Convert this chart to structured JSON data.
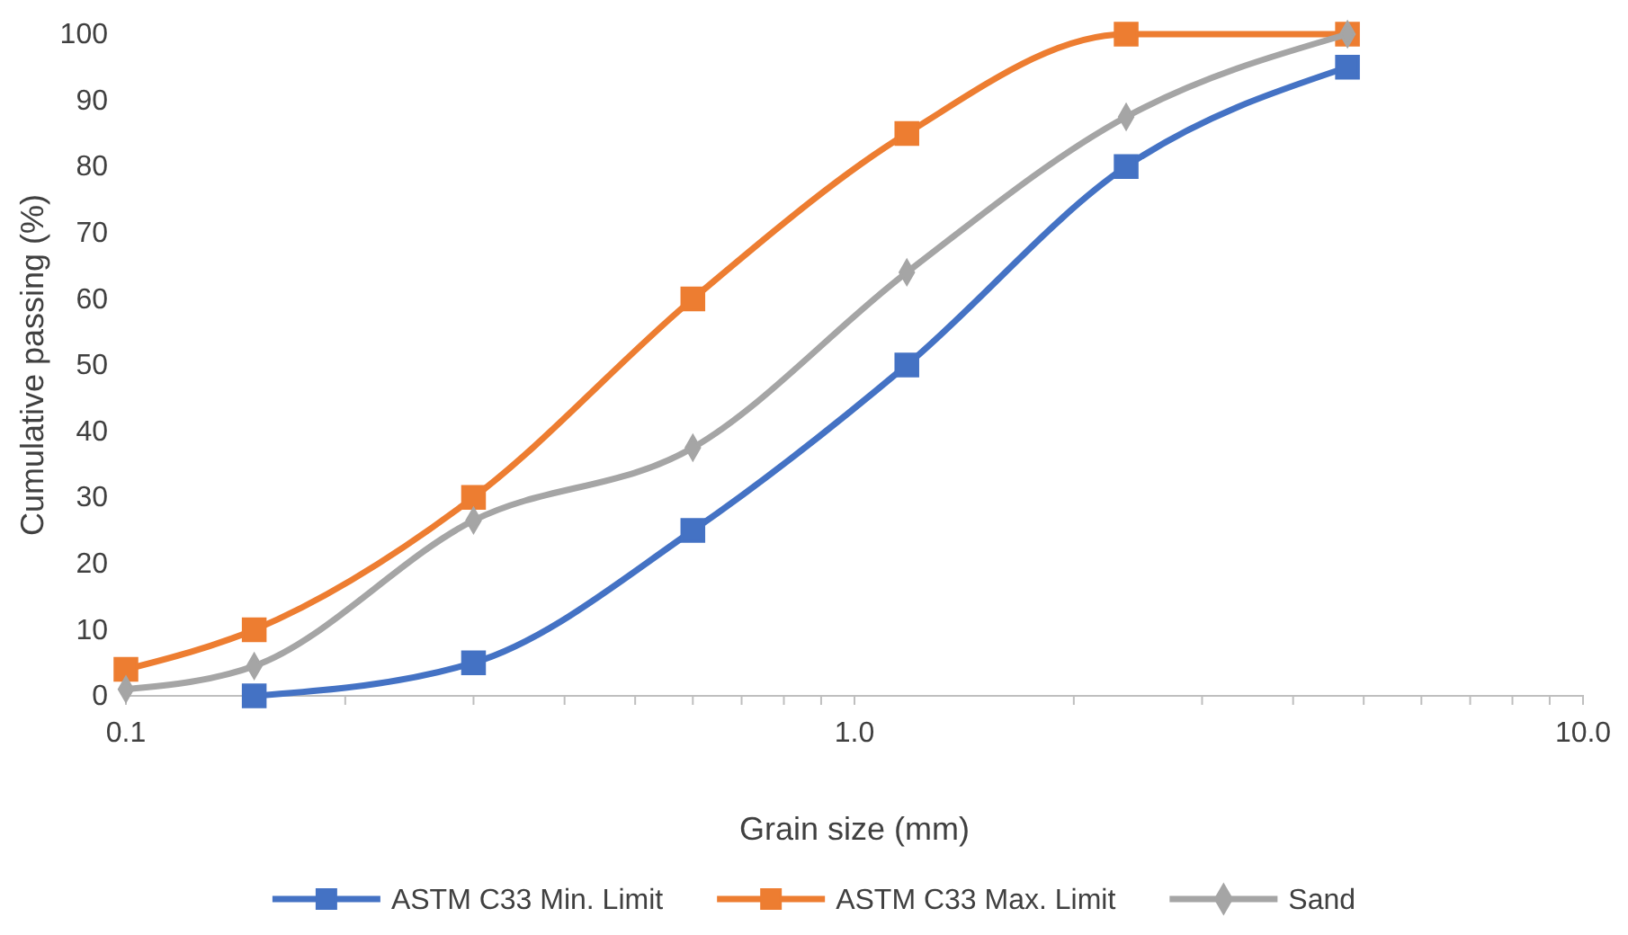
{
  "chart_data": {
    "type": "line",
    "xlabel": "Grain size (mm)",
    "ylabel": "Cumulative passing (%)",
    "log": "x",
    "xlim": [
      0.1,
      10
    ],
    "ylim": [
      0,
      100
    ],
    "xticks": [
      0.1,
      {
        "value": 0.2,
        "label": null
      },
      {
        "value": 0.3,
        "label": null
      },
      {
        "value": 0.4,
        "label": null
      },
      {
        "value": 0.5,
        "label": null
      },
      {
        "value": 0.6,
        "label": null
      },
      {
        "value": 0.7,
        "label": null
      },
      {
        "value": 0.8,
        "label": null
      },
      {
        "value": 0.9,
        "label": null
      },
      {
        "value": 1,
        "label": "1.0"
      },
      {
        "value": 2,
        "label": null
      },
      {
        "value": 3,
        "label": null
      },
      {
        "value": 4,
        "label": null
      },
      {
        "value": 5,
        "label": null
      },
      {
        "value": 6,
        "label": null
      },
      {
        "value": 7,
        "label": null
      },
      {
        "value": 8,
        "label": null
      },
      {
        "value": 9,
        "label": null
      },
      {
        "value": 10,
        "label": "10.0"
      }
    ],
    "yticks": [
      0,
      10,
      20,
      30,
      40,
      50,
      60,
      70,
      80,
      90,
      100
    ],
    "grid": false,
    "legend": "bottom",
    "line_style": "solid",
    "series": [
      {
        "name": "ASTM C33 Min. Limit",
        "color": "#4472c4",
        "marker": "square",
        "x": [
          0.15,
          0.3,
          0.6,
          1.18,
          2.36,
          4.75
        ],
        "values": [
          0,
          5,
          25,
          50,
          80,
          95
        ]
      },
      {
        "name": "ASTM C33 Max. Limit",
        "color": "#ed7d31",
        "marker": "square",
        "x": [
          0.1,
          0.15,
          0.3,
          0.6,
          1.18,
          2.36,
          4.75
        ],
        "values": [
          4,
          10,
          30,
          60,
          85,
          100,
          100
        ]
      },
      {
        "name": "Sand",
        "color": "#a5a5a5",
        "marker": "diamond",
        "x": [
          0.1,
          0.15,
          0.3,
          0.6,
          1.18,
          2.36,
          4.75
        ],
        "values": [
          1,
          4.5,
          26.5,
          37.5,
          64,
          87.5,
          100
        ]
      }
    ]
  }
}
